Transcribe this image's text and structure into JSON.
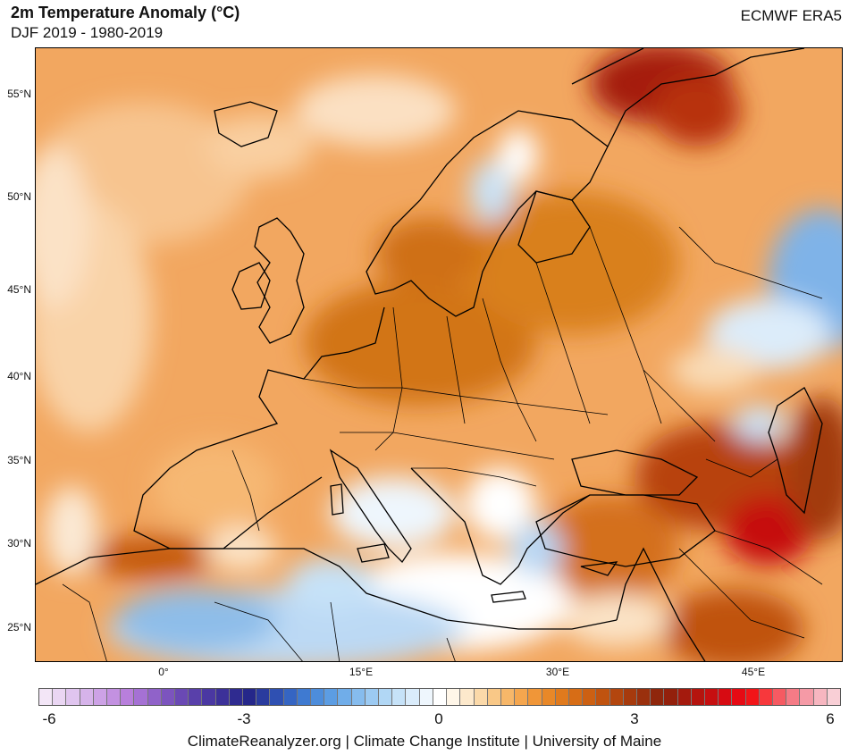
{
  "header": {
    "title": "2m Temperature Anomaly (°C)",
    "subtitle": "DJF 2019 - 1980-2019",
    "source_tag": "ECMWF ERA5"
  },
  "map": {
    "region": "Europe",
    "lat_labels": [
      "55°N",
      "50°N",
      "45°N",
      "40°N",
      "35°N",
      "30°N",
      "25°N"
    ],
    "lon_labels": [
      "0°",
      "15°E",
      "30°E",
      "45°E"
    ]
  },
  "colorbar": {
    "tick_labels": [
      "-6",
      "-3",
      "0",
      "3",
      "6"
    ],
    "colors": [
      "#f3e6f7",
      "#ead6f3",
      "#e0c5ef",
      "#d6b3ea",
      "#cda2e6",
      "#c391e1",
      "#b87fdc",
      "#a571d4",
      "#9062c9",
      "#7c54be",
      "#6a49b4",
      "#5940aa",
      "#4a38a2",
      "#3c3199",
      "#2f2b90",
      "#25278a",
      "#2a3b9e",
      "#2f50b2",
      "#3565c3",
      "#3f7ad1",
      "#4d8ddb",
      "#5c9de3",
      "#70ade9",
      "#86bcee",
      "#9ccaf2",
      "#b1d7f5",
      "#c6e2f8",
      "#daecfb",
      "#eef6fd",
      "#ffffff",
      "#fff6e8",
      "#fde9cc",
      "#fbd9a9",
      "#f9c887",
      "#f7b769",
      "#f5a64e",
      "#f09638",
      "#e88828",
      "#e07a1d",
      "#d76d16",
      "#cc6012",
      "#c0530f",
      "#b3460e",
      "#a63a0d",
      "#9a300d",
      "#8f260c",
      "#93200c",
      "#a41a0d",
      "#b5140e",
      "#c60f10",
      "#d70b12",
      "#e60a14",
      "#f21418",
      "#f7383c",
      "#f65a62",
      "#f57b86",
      "#f59aa6",
      "#f7b6c0",
      "#f9cfd6"
    ]
  },
  "footer": {
    "credit": "ClimateReanalyzer.org | Climate Change Institute | University of Maine"
  }
}
